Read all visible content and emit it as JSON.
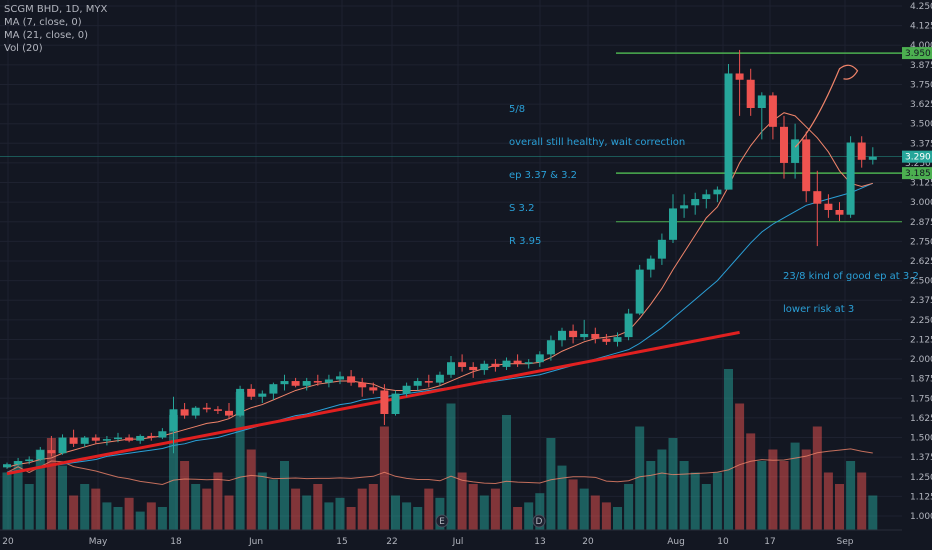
{
  "legend": {
    "symbol": "SCGM BHD, 1D, MYX",
    "ma7": "MA (7, close, 0)",
    "ma21": "MA (21, close, 0)",
    "vol": "Vol (20)"
  },
  "notes": {
    "note1": [
      "5/8",
      "overall still healthy, wait correction",
      "ep 3.37 & 3.2",
      "S 3.2",
      "R 3.95"
    ],
    "note2": [
      "23/8 kind of good ep at 3.2",
      "lower risk at 3"
    ]
  },
  "events": [
    "E",
    "D"
  ],
  "price_tags": {
    "top": "3.950",
    "current": "3.290",
    "support": "3.185",
    "behind": "3.250"
  },
  "colors": {
    "background": "#131722",
    "up": "#26a69a",
    "down": "#ef5350",
    "green_line": "#4caf50",
    "trend": "#e02020",
    "ma7": "#f0846a",
    "ma21": "#2a9fd6",
    "note": "#2a9fd6"
  },
  "chart_data": {
    "type": "candlestick",
    "symbol": "SCGM BHD",
    "interval": "1D",
    "exchange": "MYX",
    "y_ticks": [
      "4.250",
      "4.125",
      "4.000",
      "3.875",
      "3.750",
      "3.625",
      "3.500",
      "3.375",
      "3.250",
      "3.125",
      "3.000",
      "2.875",
      "2.750",
      "2.625",
      "2.500",
      "2.375",
      "2.250",
      "2.125",
      "2.000",
      "1.875",
      "1.750",
      "1.625",
      "1.500",
      "1.375",
      "1.250",
      "1.125",
      "1.000"
    ],
    "x_ticks": [
      "20",
      "May",
      "18",
      "Jun",
      "15",
      "22",
      "Jul",
      "13",
      "20",
      "Aug",
      "10",
      "17",
      "Sep"
    ],
    "ylim": [
      0.97,
      4.28
    ],
    "candles": [
      [
        1.31,
        1.34,
        1.3,
        1.33
      ],
      [
        1.33,
        1.37,
        1.32,
        1.35
      ],
      [
        1.35,
        1.38,
        1.33,
        1.36
      ],
      [
        1.36,
        1.44,
        1.35,
        1.42
      ],
      [
        1.42,
        1.51,
        1.38,
        1.4
      ],
      [
        1.4,
        1.52,
        1.39,
        1.5
      ],
      [
        1.5,
        1.55,
        1.44,
        1.46
      ],
      [
        1.46,
        1.51,
        1.44,
        1.5
      ],
      [
        1.5,
        1.52,
        1.46,
        1.48
      ],
      [
        1.48,
        1.51,
        1.45,
        1.49
      ],
      [
        1.49,
        1.53,
        1.47,
        1.5
      ],
      [
        1.5,
        1.52,
        1.47,
        1.48
      ],
      [
        1.48,
        1.52,
        1.46,
        1.51
      ],
      [
        1.51,
        1.53,
        1.48,
        1.5
      ],
      [
        1.5,
        1.56,
        1.49,
        1.54
      ],
      [
        1.54,
        1.76,
        1.4,
        1.68
      ],
      [
        1.68,
        1.72,
        1.62,
        1.64
      ],
      [
        1.64,
        1.7,
        1.62,
        1.69
      ],
      [
        1.69,
        1.72,
        1.66,
        1.68
      ],
      [
        1.68,
        1.7,
        1.65,
        1.67
      ],
      [
        1.67,
        1.72,
        1.62,
        1.64
      ],
      [
        1.64,
        1.83,
        1.63,
        1.81
      ],
      [
        1.81,
        1.84,
        1.74,
        1.76
      ],
      [
        1.76,
        1.8,
        1.72,
        1.78
      ],
      [
        1.78,
        1.85,
        1.74,
        1.84
      ],
      [
        1.84,
        1.9,
        1.8,
        1.86
      ],
      [
        1.86,
        1.88,
        1.82,
        1.83
      ],
      [
        1.83,
        1.88,
        1.8,
        1.86
      ],
      [
        1.86,
        1.9,
        1.83,
        1.85
      ],
      [
        1.85,
        1.9,
        1.82,
        1.87
      ],
      [
        1.87,
        1.92,
        1.84,
        1.89
      ],
      [
        1.89,
        1.93,
        1.83,
        1.85
      ],
      [
        1.85,
        1.88,
        1.76,
        1.82
      ],
      [
        1.82,
        1.85,
        1.78,
        1.8
      ],
      [
        1.8,
        1.84,
        1.58,
        1.65
      ],
      [
        1.65,
        1.8,
        1.64,
        1.78
      ],
      [
        1.78,
        1.85,
        1.76,
        1.83
      ],
      [
        1.83,
        1.88,
        1.8,
        1.86
      ],
      [
        1.86,
        1.9,
        1.82,
        1.85
      ],
      [
        1.85,
        1.92,
        1.83,
        1.9
      ],
      [
        1.9,
        2.02,
        1.88,
        1.98
      ],
      [
        1.98,
        2.03,
        1.92,
        1.95
      ],
      [
        1.95,
        1.98,
        1.88,
        1.93
      ],
      [
        1.93,
        1.99,
        1.9,
        1.97
      ],
      [
        1.97,
        2.0,
        1.92,
        1.95
      ],
      [
        1.95,
        2.01,
        1.93,
        1.99
      ],
      [
        1.99,
        2.03,
        1.95,
        1.97
      ],
      [
        1.97,
        2.0,
        1.94,
        1.98
      ],
      [
        1.98,
        2.05,
        1.95,
        2.03
      ],
      [
        2.03,
        2.15,
        1.99,
        2.12
      ],
      [
        2.12,
        2.2,
        2.08,
        2.18
      ],
      [
        2.18,
        2.22,
        2.1,
        2.14
      ],
      [
        2.14,
        2.25,
        2.12,
        2.16
      ],
      [
        2.16,
        2.2,
        2.1,
        2.13
      ],
      [
        2.13,
        2.16,
        2.09,
        2.11
      ],
      [
        2.11,
        2.17,
        2.08,
        2.14
      ],
      [
        2.14,
        2.32,
        2.12,
        2.29
      ],
      [
        2.29,
        2.6,
        2.28,
        2.57
      ],
      [
        2.57,
        2.66,
        2.52,
        2.64
      ],
      [
        2.64,
        2.8,
        2.6,
        2.76
      ],
      [
        2.76,
        3.05,
        2.74,
        2.96
      ],
      [
        2.96,
        3.05,
        2.9,
        2.98
      ],
      [
        2.98,
        3.06,
        2.92,
        3.02
      ],
      [
        3.02,
        3.08,
        2.96,
        3.05
      ],
      [
        3.05,
        3.1,
        3.0,
        3.08
      ],
      [
        3.08,
        3.88,
        3.08,
        3.82
      ],
      [
        3.82,
        3.97,
        3.55,
        3.78
      ],
      [
        3.78,
        3.85,
        3.55,
        3.6
      ],
      [
        3.6,
        3.7,
        3.4,
        3.68
      ],
      [
        3.68,
        3.7,
        3.4,
        3.48
      ],
      [
        3.48,
        3.55,
        3.15,
        3.25
      ],
      [
        3.25,
        3.5,
        3.15,
        3.4
      ],
      [
        3.4,
        3.45,
        3.0,
        3.07
      ],
      [
        3.07,
        3.2,
        2.72,
        2.99
      ],
      [
        2.99,
        3.05,
        2.9,
        2.95
      ],
      [
        2.95,
        3.0,
        2.88,
        2.92
      ],
      [
        2.92,
        3.42,
        2.9,
        3.38
      ],
      [
        3.38,
        3.42,
        3.22,
        3.27
      ],
      [
        3.27,
        3.35,
        3.24,
        3.29
      ]
    ],
    "volume": [
      0.25,
      0.3,
      0.2,
      0.35,
      0.4,
      0.28,
      0.15,
      0.2,
      0.18,
      0.12,
      0.1,
      0.14,
      0.08,
      0.12,
      0.1,
      0.5,
      0.3,
      0.2,
      0.18,
      0.25,
      0.15,
      0.6,
      0.35,
      0.25,
      0.22,
      0.3,
      0.18,
      0.15,
      0.2,
      0.12,
      0.14,
      0.1,
      0.18,
      0.2,
      0.45,
      0.15,
      0.12,
      0.1,
      0.18,
      0.14,
      0.55,
      0.25,
      0.2,
      0.15,
      0.18,
      0.5,
      0.1,
      0.12,
      0.16,
      0.4,
      0.28,
      0.22,
      0.18,
      0.15,
      0.12,
      0.1,
      0.2,
      0.45,
      0.3,
      0.35,
      0.4,
      0.3,
      0.25,
      0.2,
      0.25,
      0.7,
      0.55,
      0.42,
      0.3,
      0.35,
      0.3,
      0.38,
      0.35,
      0.45,
      0.25,
      0.2,
      0.3,
      0.25,
      0.15
    ],
    "ma7": [
      1.31,
      1.33,
      1.34,
      1.36,
      1.37,
      1.4,
      1.42,
      1.44,
      1.46,
      1.47,
      1.48,
      1.49,
      1.49,
      1.5,
      1.51,
      1.53,
      1.55,
      1.57,
      1.59,
      1.6,
      1.62,
      1.66,
      1.69,
      1.71,
      1.74,
      1.77,
      1.8,
      1.82,
      1.84,
      1.85,
      1.86,
      1.86,
      1.85,
      1.84,
      1.81,
      1.8,
      1.8,
      1.8,
      1.81,
      1.83,
      1.86,
      1.89,
      1.92,
      1.94,
      1.96,
      1.97,
      1.97,
      1.97,
      1.98,
      2.01,
      2.05,
      2.08,
      2.11,
      2.13,
      2.14,
      2.15,
      2.18,
      2.26,
      2.35,
      2.45,
      2.57,
      2.68,
      2.79,
      2.9,
      2.97,
      3.1,
      3.25,
      3.36,
      3.45,
      3.52,
      3.57,
      3.55,
      3.48,
      3.41,
      3.32,
      3.2,
      3.12,
      3.1,
      3.12
    ],
    "ma21": [
      1.28,
      1.29,
      1.3,
      1.31,
      1.32,
      1.33,
      1.34,
      1.35,
      1.36,
      1.38,
      1.39,
      1.4,
      1.41,
      1.42,
      1.43,
      1.45,
      1.46,
      1.48,
      1.49,
      1.5,
      1.52,
      1.54,
      1.56,
      1.58,
      1.6,
      1.62,
      1.64,
      1.65,
      1.67,
      1.69,
      1.71,
      1.72,
      1.74,
      1.75,
      1.76,
      1.77,
      1.78,
      1.79,
      1.8,
      1.81,
      1.82,
      1.83,
      1.84,
      1.85,
      1.86,
      1.87,
      1.88,
      1.89,
      1.9,
      1.92,
      1.94,
      1.96,
      1.98,
      2.0,
      2.02,
      2.04,
      2.06,
      2.1,
      2.15,
      2.2,
      2.26,
      2.32,
      2.38,
      2.44,
      2.5,
      2.58,
      2.66,
      2.74,
      2.81,
      2.86,
      2.9,
      2.94,
      2.98,
      3.0,
      3.02,
      3.04,
      3.06,
      3.09,
      3.12
    ],
    "horizontal_levels": [
      3.95,
      3.185,
      2.875
    ],
    "current_price_line": 3.29,
    "trend_line": {
      "from": [
        0,
        1.27
      ],
      "to": [
        66,
        2.17
      ]
    },
    "arrow_annotation": {
      "from": [
        71,
        3.35
      ],
      "to": [
        75,
        3.85
      ]
    }
  }
}
